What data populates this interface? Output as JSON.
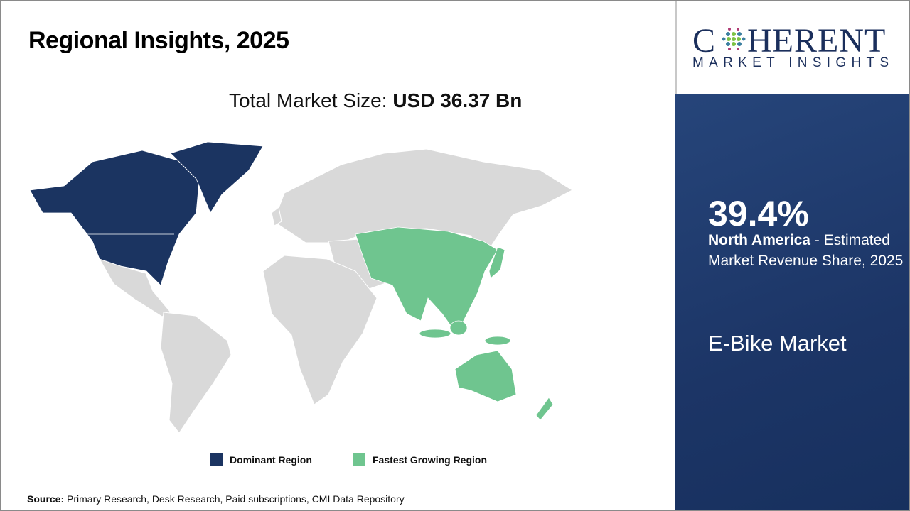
{
  "header": {
    "title": "Regional Insights, 2025"
  },
  "total": {
    "label": "Total Market Size: ",
    "value": "USD 36.37 Bn"
  },
  "legend": {
    "dominant": "Dominant Region",
    "fastest": "Fastest Growing Region"
  },
  "colors": {
    "dominant": "#1b3461",
    "fastest": "#6fc58f",
    "other": "#d9d9d9",
    "panel": "#1c3566"
  },
  "source": {
    "label": "Source:",
    "text": " Primary Research, Desk Research, Paid subscriptions, CMI Data Repository"
  },
  "logo": {
    "big_c": "C",
    "big_rest": "HERENT",
    "small": "MARKET INSIGHTS"
  },
  "panel": {
    "share": "39.4%",
    "region": "North America",
    "desc": " - Estimated Market Revenue Share, 2025",
    "market": "E-Bike Market"
  },
  "map": {
    "dominant_region": "North America",
    "fastest_region": "Asia Pacific"
  }
}
